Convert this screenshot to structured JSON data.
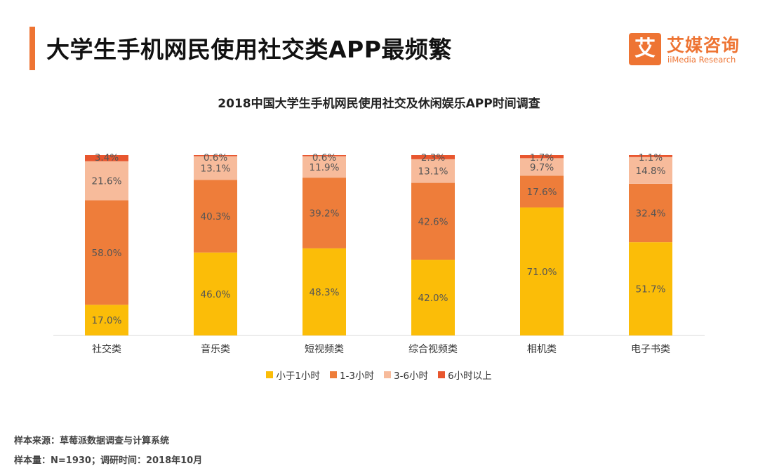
{
  "header": {
    "title": "大学生手机网民使用社交类APP最频繁"
  },
  "logo": {
    "mark": "艾",
    "name_cn": "艾媒咨询",
    "name_en": "iiMedia Research"
  },
  "footer": {
    "source": "样本来源：草莓派数据调查与计算系统",
    "sample": "样本量：N=1930；调研时间：2018年10月"
  },
  "chart_data": {
    "type": "bar",
    "stacked": true,
    "title": "2018中国大学生手机网民使用社交及休闲娱乐APP时间调查",
    "xlabel": "",
    "ylabel": "",
    "ylim": [
      0,
      100
    ],
    "grid": false,
    "legend_position": "bottom",
    "categories": [
      "社交类",
      "音乐类",
      "短视频类",
      "综合视频类",
      "相机类",
      "电子书类"
    ],
    "series": [
      {
        "name": "小于1小时",
        "color": "#fbbd08",
        "values": [
          17.0,
          46.0,
          48.3,
          42.0,
          71.0,
          51.7
        ]
      },
      {
        "name": "1-3小时",
        "color": "#ee7d3a",
        "values": [
          58.0,
          40.3,
          39.2,
          42.6,
          17.6,
          32.4
        ]
      },
      {
        "name": "3-6小时",
        "color": "#f7bb9b",
        "values": [
          21.6,
          13.1,
          11.9,
          13.1,
          9.7,
          14.8
        ]
      },
      {
        "name": "6小时以上",
        "color": "#e8562e",
        "values": [
          3.4,
          0.6,
          0.6,
          2.3,
          1.7,
          1.1
        ]
      }
    ],
    "labels": [
      [
        "17.0%",
        "46.0%",
        "48.3%",
        "42.0%",
        "71.0%",
        "51.7%"
      ],
      [
        "58.0%",
        "40.3%",
        "39.2%",
        "42.6%",
        "17.6%",
        "32.4%"
      ],
      [
        "21.6%",
        "13.1%",
        "11.9%",
        "13.1%",
        "9.7%",
        "14.8%"
      ],
      [
        "3.4%",
        "0.6%",
        "0.6%",
        "2.3%",
        "1.7%",
        "1.1%"
      ]
    ]
  }
}
